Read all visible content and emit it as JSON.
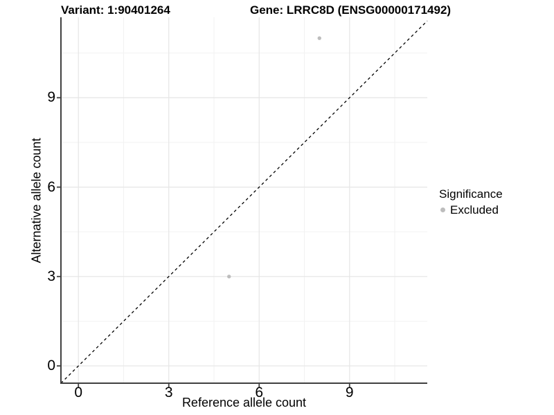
{
  "titles": {
    "variant": "Variant: 1:90401264",
    "gene": "Gene: LRRC8D (ENSG00000171492)"
  },
  "axes": {
    "x_label": "Reference allele count",
    "y_label": "Alternative allele count"
  },
  "legend": {
    "title": "Significance",
    "items": [
      {
        "label": "Excluded",
        "color": "#bdbdbd"
      }
    ]
  },
  "colors": {
    "background": "#ffffff",
    "axis_line": "#404040",
    "tick_mark": "#404040",
    "grid_major": "#e7e7e7",
    "grid_minor": "#f2f2f2",
    "point": "#bdbdbd",
    "identity_line": "#000000",
    "text": "#000000"
  },
  "chart_data": {
    "type": "scatter",
    "title": "Variant: 1:90401264    Gene: LRRC8D (ENSG00000171492)",
    "xlabel": "Reference allele count",
    "ylabel": "Alternative allele count",
    "xlim": [
      -0.58,
      11.58
    ],
    "ylim": [
      -0.58,
      11.7
    ],
    "x_ticks": [
      0,
      3,
      6,
      9
    ],
    "y_ticks": [
      0,
      3,
      6,
      9
    ],
    "x_minor_ticks": [
      1.5,
      4.5,
      7.5,
      10.5
    ],
    "y_minor_ticks": [
      1.5,
      4.5,
      7.5,
      10.5
    ],
    "grid": true,
    "legend_position": "right",
    "reference_line": {
      "kind": "identity y=x",
      "style": "dashed",
      "color": "#000000"
    },
    "series": [
      {
        "name": "Excluded",
        "color": "#bdbdbd",
        "points": [
          {
            "x": 5,
            "y": 3
          },
          {
            "x": 8,
            "y": 11
          }
        ]
      }
    ]
  }
}
